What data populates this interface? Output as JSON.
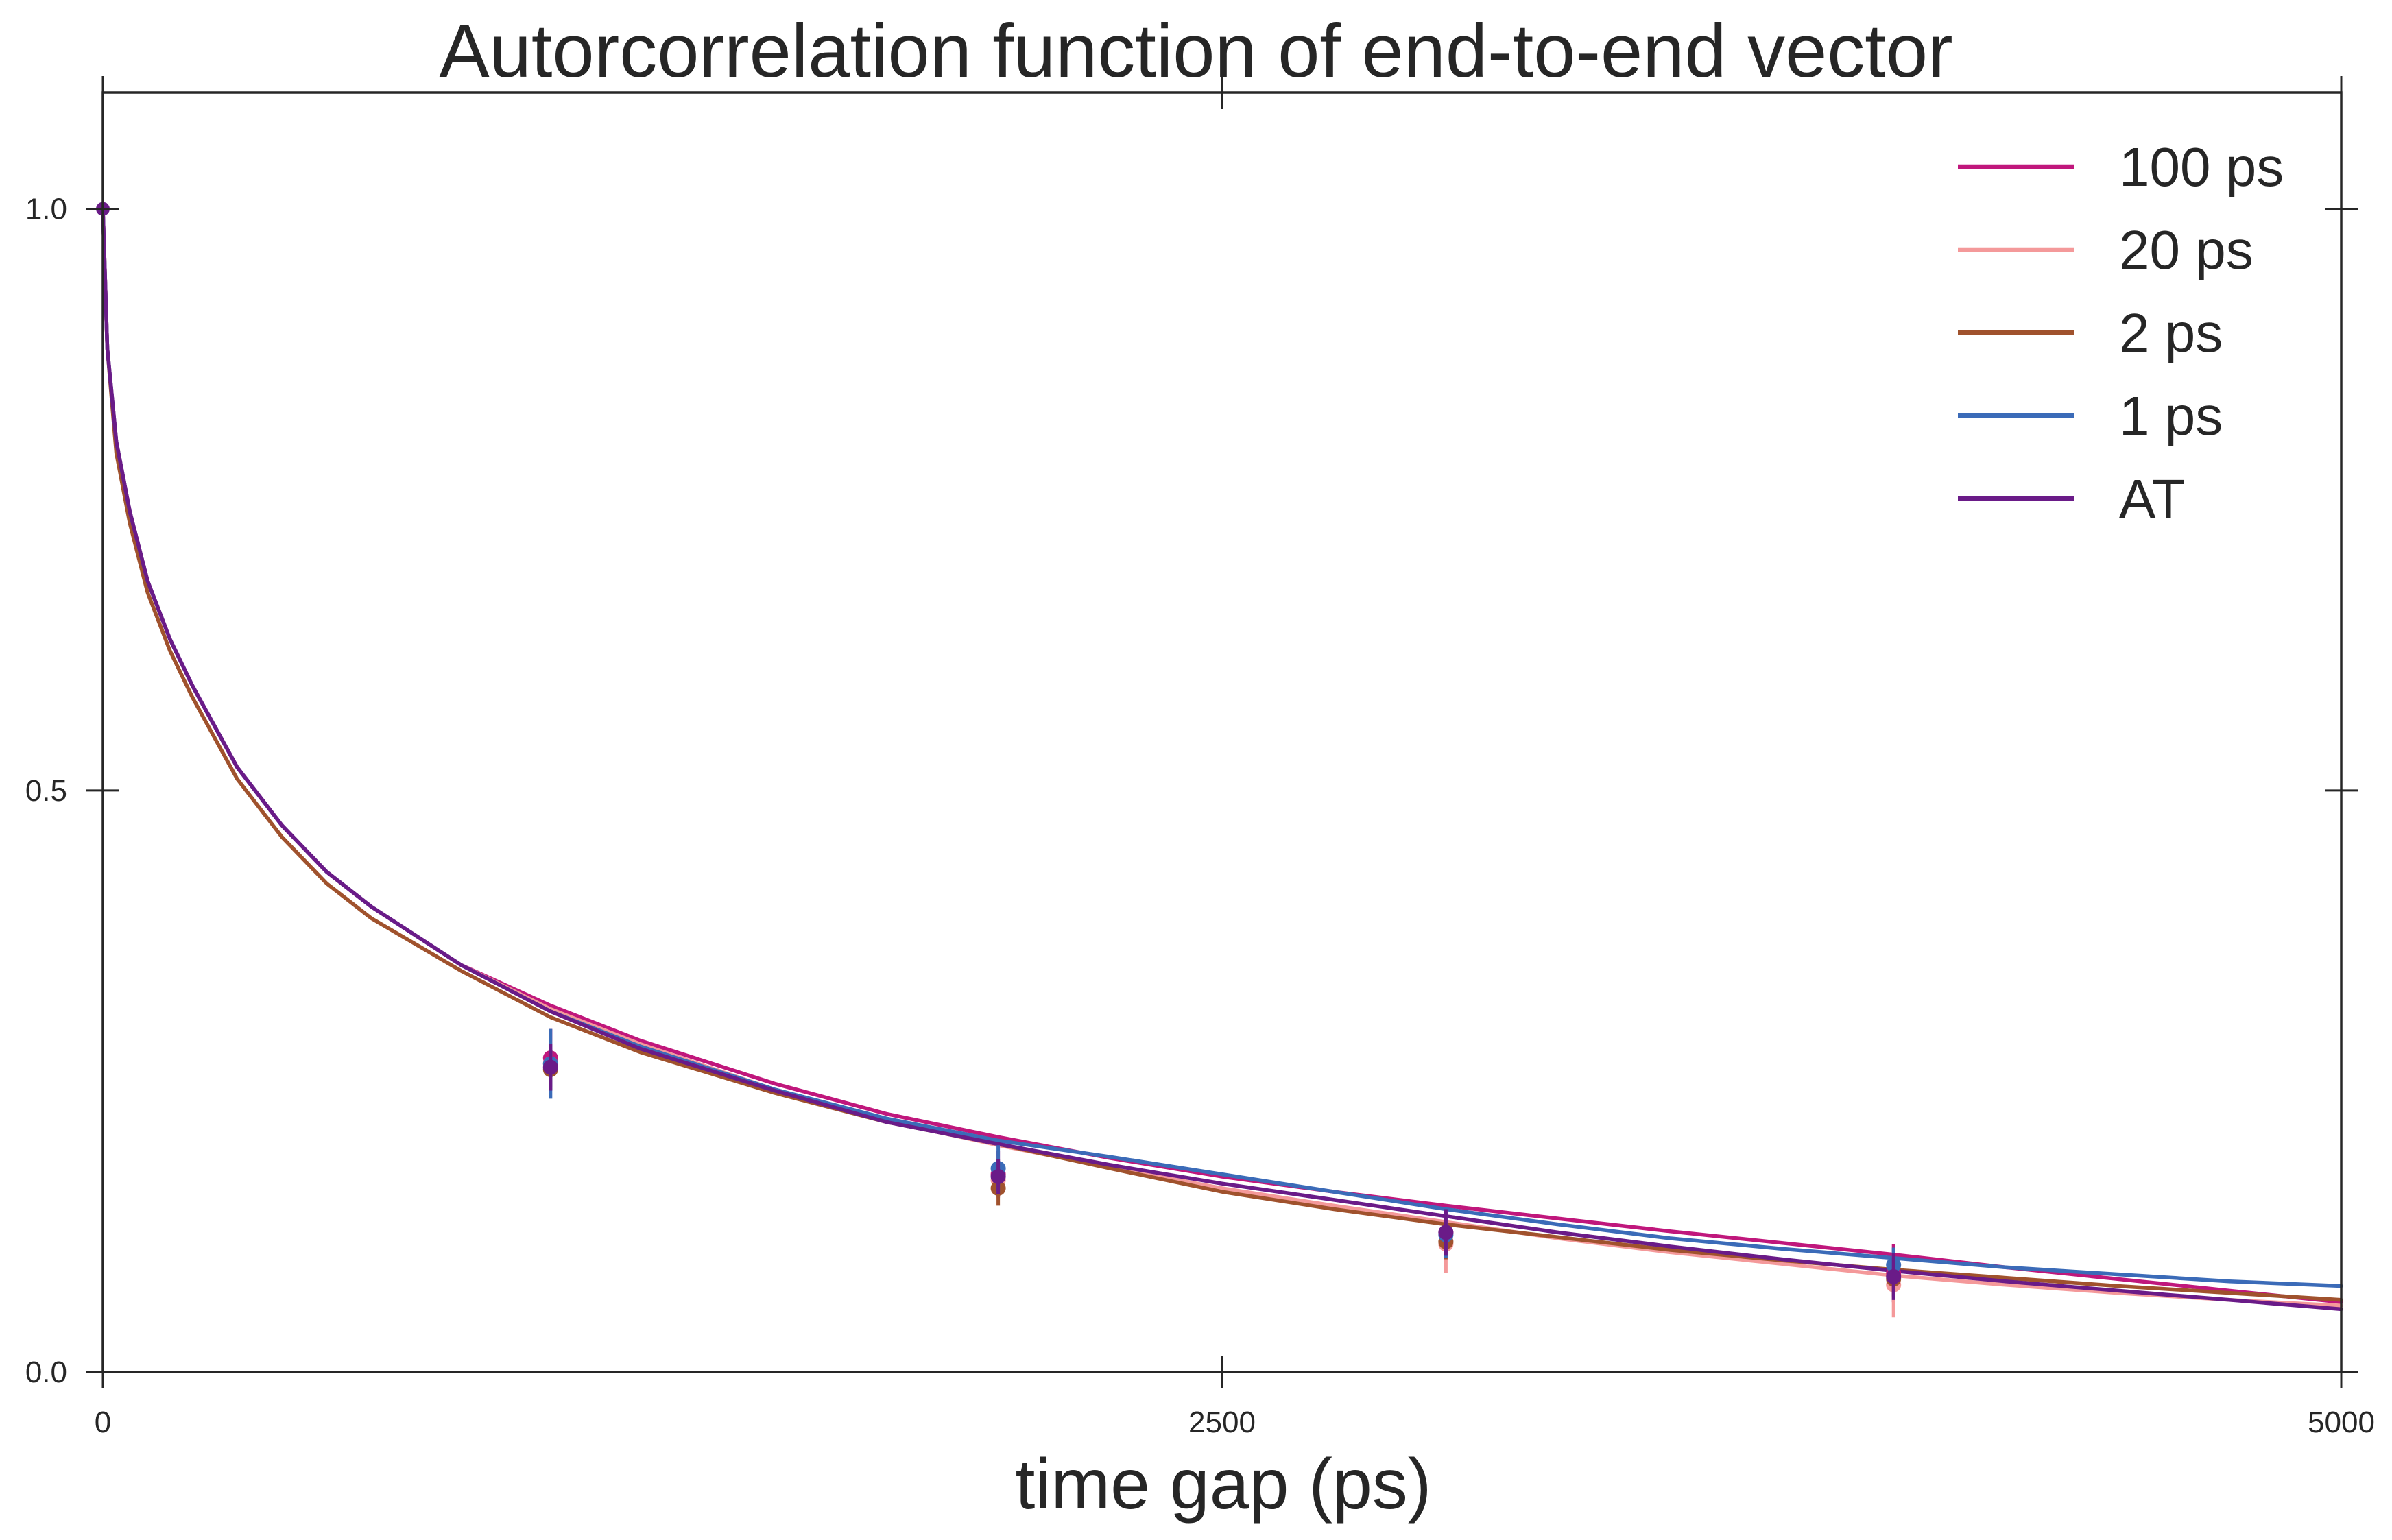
{
  "chart_data": {
    "type": "line",
    "title": "Autorcorrelation function of end-to-end vector",
    "xlabel": "time gap (ps)",
    "ylabel": "",
    "xlim": [
      0,
      5000
    ],
    "ylim": [
      0.0,
      1.1
    ],
    "x_ticks": [
      {
        "value": 0,
        "label": "0"
      },
      {
        "value": 2500,
        "label": "2500"
      },
      {
        "value": 5000,
        "label": "5000"
      }
    ],
    "y_ticks": [
      {
        "value": 0.0,
        "label": "0.0"
      },
      {
        "value": 0.5,
        "label": "0.5"
      },
      {
        "value": 1.0,
        "label": "1.0"
      }
    ],
    "grid": false,
    "legend_position": "top-right",
    "x": [
      0,
      10,
      30,
      60,
      100,
      150,
      200,
      300,
      400,
      500,
      600,
      800,
      1000,
      1200,
      1500,
      1750,
      2000,
      2250,
      2500,
      2750,
      3000,
      3250,
      3500,
      3750,
      4000,
      4250,
      4500,
      4750,
      5000
    ],
    "series": [
      {
        "name": "100 ps",
        "color": "#c0177c",
        "values": [
          1.0,
          0.88,
          0.8,
          0.74,
          0.68,
          0.63,
          0.59,
          0.52,
          0.47,
          0.43,
          0.4,
          0.35,
          0.315,
          0.285,
          0.248,
          0.222,
          0.202,
          0.184,
          0.168,
          0.155,
          0.143,
          0.132,
          0.121,
          0.111,
          0.101,
          0.09,
          0.08,
          0.07,
          0.06
        ]
      },
      {
        "name": "20 ps",
        "color": "#f4999a",
        "values": [
          1.0,
          0.88,
          0.8,
          0.74,
          0.68,
          0.63,
          0.59,
          0.52,
          0.47,
          0.43,
          0.4,
          0.35,
          0.312,
          0.282,
          0.243,
          0.216,
          0.195,
          0.176,
          0.158,
          0.143,
          0.129,
          0.115,
          0.103,
          0.093,
          0.083,
          0.075,
          0.068,
          0.062,
          0.057
        ]
      },
      {
        "name": "2 ps",
        "color": "#a0522d",
        "values": [
          1.0,
          0.88,
          0.79,
          0.73,
          0.67,
          0.62,
          0.58,
          0.51,
          0.46,
          0.42,
          0.39,
          0.345,
          0.305,
          0.275,
          0.24,
          0.215,
          0.196,
          0.175,
          0.155,
          0.14,
          0.127,
          0.116,
          0.105,
          0.096,
          0.088,
          0.081,
          0.074,
          0.068,
          0.062
        ]
      },
      {
        "name": "1 ps",
        "color": "#3b6bb8",
        "values": [
          1.0,
          0.88,
          0.8,
          0.74,
          0.68,
          0.63,
          0.59,
          0.52,
          0.47,
          0.43,
          0.4,
          0.35,
          0.31,
          0.28,
          0.243,
          0.218,
          0.199,
          0.185,
          0.17,
          0.155,
          0.14,
          0.127,
          0.115,
          0.106,
          0.098,
          0.09,
          0.084,
          0.078,
          0.074
        ]
      },
      {
        "name": "AT",
        "color": "#6a1b88",
        "values": [
          1.0,
          0.88,
          0.8,
          0.74,
          0.68,
          0.63,
          0.59,
          0.52,
          0.47,
          0.43,
          0.4,
          0.35,
          0.31,
          0.278,
          0.242,
          0.215,
          0.196,
          0.178,
          0.162,
          0.148,
          0.134,
          0.12,
          0.108,
          0.097,
          0.087,
          0.078,
          0.07,
          0.062,
          0.054
        ]
      }
    ],
    "markers": [
      {
        "series": "100 ps",
        "points": [
          [
            1000,
            0.27,
            0.025
          ],
          [
            2000,
            0.17,
            0.02
          ],
          [
            3000,
            0.12,
            0.018
          ],
          [
            4000,
            0.085,
            0.025
          ]
        ]
      },
      {
        "series": "20 ps",
        "points": [
          [
            1000,
            0.265,
            0.02
          ],
          [
            2000,
            0.165,
            0.015
          ],
          [
            3000,
            0.11,
            0.025
          ],
          [
            4000,
            0.075,
            0.028
          ]
        ]
      },
      {
        "series": "2 ps",
        "points": [
          [
            1000,
            0.26,
            0.018
          ],
          [
            2000,
            0.158,
            0.015
          ],
          [
            3000,
            0.112,
            0.015
          ],
          [
            4000,
            0.08,
            0.015
          ]
        ]
      },
      {
        "series": "1 ps",
        "points": [
          [
            1000,
            0.265,
            0.03
          ],
          [
            2000,
            0.175,
            0.02
          ],
          [
            3000,
            0.118,
            0.02
          ],
          [
            4000,
            0.092,
            0.015
          ]
        ]
      },
      {
        "series": "AT",
        "points": [
          [
            1000,
            0.262,
            0.02
          ],
          [
            2000,
            0.168,
            0.015
          ],
          [
            3000,
            0.12,
            0.02
          ],
          [
            4000,
            0.082,
            0.02
          ]
        ]
      }
    ]
  }
}
